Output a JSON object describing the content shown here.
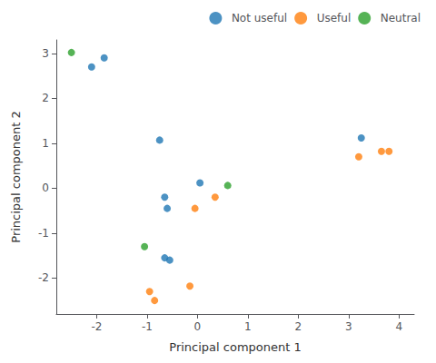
{
  "chart_data": {
    "type": "scatter",
    "xlabel": "Principal component 1",
    "ylabel": "Principal component 2",
    "series": [
      {
        "name": "Not useful",
        "color": "#1f77b4",
        "marker": "circle",
        "x": [
          -2.1,
          -1.85,
          -0.75,
          -0.65,
          -0.6,
          0.05,
          -0.55,
          3.25,
          -0.65
        ],
        "y": [
          2.7,
          2.9,
          1.07,
          -0.2,
          -0.45,
          0.12,
          -1.6,
          1.12,
          -1.55
        ]
      },
      {
        "name": "Useful",
        "color": "#ff7f0e",
        "marker": "circle",
        "x": [
          -0.05,
          0.35,
          3.2,
          3.65,
          3.8,
          -0.95,
          -0.85,
          -0.15
        ],
        "y": [
          -0.45,
          -0.2,
          0.7,
          0.82,
          0.82,
          -2.3,
          -2.5,
          -2.18
        ]
      },
      {
        "name": "Neutral",
        "color": "#2ca02c",
        "marker": "circle",
        "x": [
          -2.5,
          -1.05,
          0.6
        ],
        "y": [
          3.02,
          -1.3,
          0.06
        ]
      }
    ],
    "xlim": [
      -2.8,
      4.3
    ],
    "ylim": [
      -2.8,
      3.3
    ],
    "xticks": [
      -2,
      -1,
      0,
      1,
      2,
      3,
      4
    ],
    "yticks": [
      -2,
      -1,
      0,
      1,
      2,
      3
    ],
    "legend": "upper right",
    "grid": false
  }
}
